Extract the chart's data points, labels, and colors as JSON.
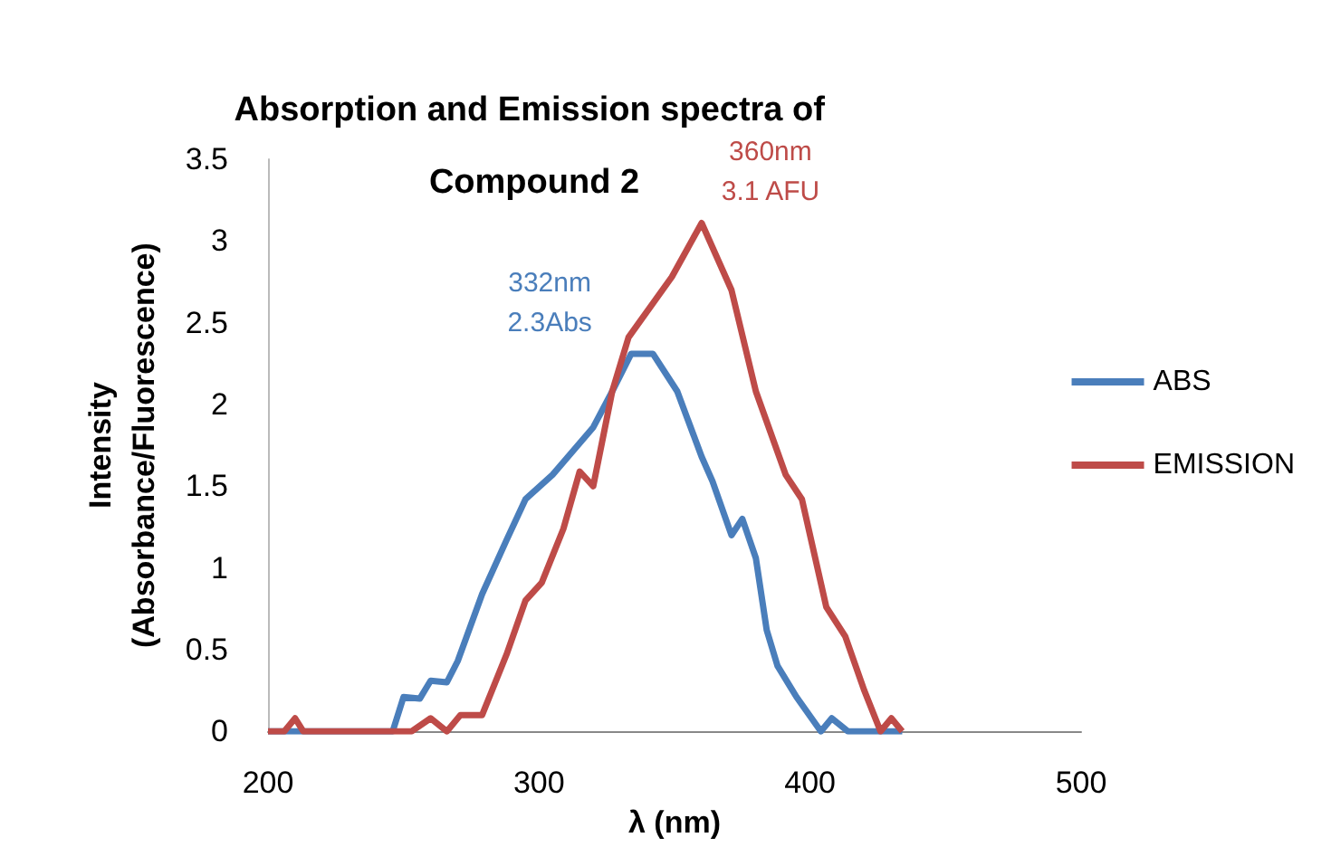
{
  "chart_data": {
    "type": "line",
    "title": "Absorption and Emission spectra of Compound 2",
    "xlabel": "λ (nm)",
    "ylabel": "Intensity\n(Absorbance/Fluorescence)",
    "xlim": [
      200,
      500
    ],
    "xticks": [
      200,
      300,
      400,
      500
    ],
    "ylim": [
      0,
      3.5
    ],
    "yticks": [
      0,
      0.5,
      1,
      1.5,
      2,
      2.5,
      3,
      3.5
    ],
    "grid": false,
    "legend": "right",
    "marker": "none",
    "line_style": "solid",
    "annotations": [
      {
        "text": "332nm\n2.3Abs",
        "x": 332,
        "y": 2.3
      },
      {
        "text": "360nm\n3.1 AFU",
        "x": 360,
        "y": 3.1
      }
    ],
    "series": [
      {
        "name": "ABS",
        "color": "#4a7ebb",
        "x": [
          200,
          246,
          250,
          256,
          260,
          266,
          270,
          279,
          288,
          295,
          305,
          320,
          327,
          334,
          342,
          351,
          360,
          364,
          371,
          375,
          380,
          384,
          388,
          395,
          404,
          408,
          414,
          434
        ],
        "values": [
          0,
          0,
          0.21,
          0.2,
          0.31,
          0.3,
          0.43,
          0.84,
          1.17,
          1.42,
          1.57,
          1.86,
          2.08,
          2.31,
          2.31,
          2.08,
          1.68,
          1.53,
          1.2,
          1.3,
          1.06,
          0.62,
          0.4,
          0.21,
          0,
          0.08,
          0,
          0
        ]
      },
      {
        "name": "EMISSION",
        "color": "#be4b48",
        "x": [
          200,
          206,
          210,
          213,
          253,
          260,
          266,
          271,
          279,
          288,
          295,
          301,
          309,
          315,
          320,
          327,
          333,
          349,
          360,
          371,
          380,
          391,
          397,
          406,
          413,
          420,
          426,
          430,
          434
        ],
        "values": [
          0,
          0,
          0.08,
          0,
          0,
          0.08,
          0,
          0.1,
          0.1,
          0.47,
          0.8,
          0.91,
          1.24,
          1.59,
          1.5,
          2.08,
          2.41,
          2.78,
          3.11,
          2.7,
          2.08,
          1.57,
          1.42,
          0.76,
          0.58,
          0.25,
          0,
          0.08,
          0
        ]
      }
    ]
  }
}
